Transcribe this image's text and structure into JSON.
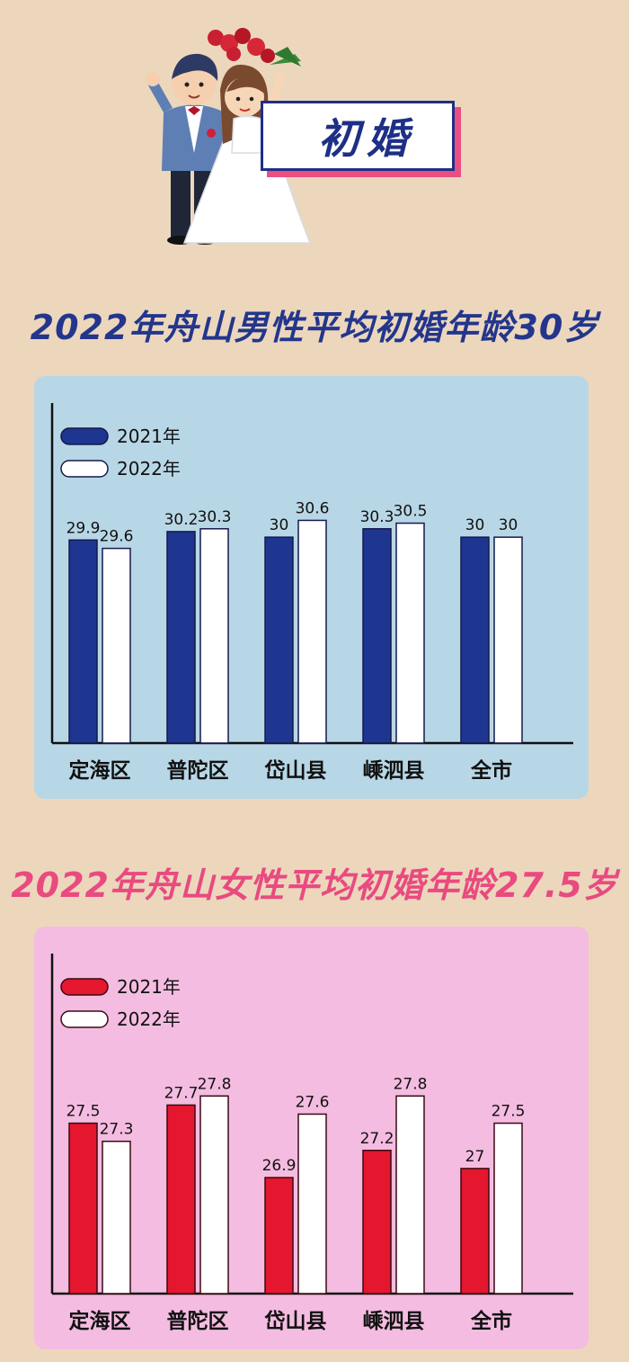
{
  "header": {
    "banner_text": "初婚"
  },
  "chart_data": [
    {
      "type": "bar",
      "title": "2022年舟山男性平均初婚年龄30岁",
      "categories": [
        "定海区",
        "普陀区",
        "岱山县",
        "嵊泗县",
        "全市"
      ],
      "series": [
        {
          "name": "2021年",
          "values": [
            29.9,
            30.2,
            30,
            30.3,
            30
          ],
          "labels": [
            "29.9",
            "30.2",
            "30",
            "30.3",
            "30"
          ]
        },
        {
          "name": "2022年",
          "values": [
            29.6,
            30.3,
            30.6,
            30.5,
            30
          ],
          "labels": [
            "29.6",
            "30.3",
            "30.6",
            "30.5",
            "30"
          ]
        }
      ],
      "ylim": [
        22.65,
        31
      ],
      "grid": false,
      "legend": "top-left",
      "colors": {
        "series1": "#1e3690",
        "series2": "#ffffff",
        "stroke": "#15194d"
      }
    },
    {
      "type": "bar",
      "title": "2022年舟山女性平均初婚年龄27.5岁",
      "categories": [
        "定海区",
        "普陀区",
        "岱山县",
        "嵊泗县",
        "全市"
      ],
      "series": [
        {
          "name": "2021年",
          "values": [
            27.5,
            27.7,
            26.9,
            27.2,
            27
          ],
          "labels": [
            "27.5",
            "27.7",
            "26.9",
            "27.2",
            "27"
          ]
        },
        {
          "name": "2022年",
          "values": [
            27.3,
            27.8,
            27.6,
            27.8,
            27.5
          ],
          "labels": [
            "27.3",
            "27.8",
            "27.6",
            "27.8",
            "27.5"
          ]
        }
      ],
      "ylim": [
        25.62,
        28.2
      ],
      "grid": false,
      "legend": "top-left",
      "colors": {
        "series1": "#e5172f",
        "series2": "#ffffff",
        "stroke": "#3a0a12"
      }
    }
  ]
}
